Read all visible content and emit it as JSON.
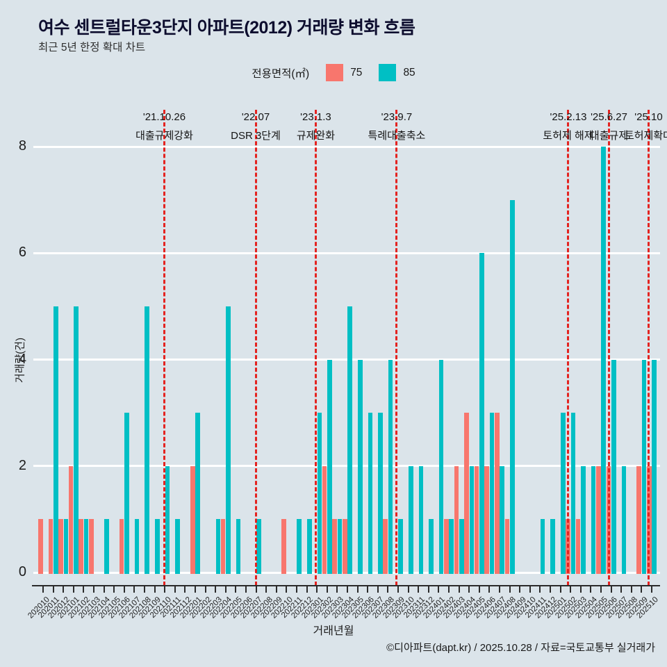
{
  "header": {
    "title": "여수 센트럴타운3단지 아파트(2012) 거래량 변화 흐름",
    "subtitle": "최근 5년 한정 확대 차트"
  },
  "legend": {
    "title": "전용면적(㎡)",
    "items": [
      {
        "label": "75",
        "color": "#F8766D"
      },
      {
        "label": "85",
        "color": "#00BFC4"
      }
    ]
  },
  "footer": {
    "credit": "©디아파트(dapt.kr) / 2025.10.28 / 자료=국토교통부 실거래가"
  },
  "colors": {
    "background": "#dbe4ea",
    "gridline": "#ffffff",
    "event_line": "#e42320",
    "series_75": "#F8766D",
    "series_85": "#00BFC4"
  },
  "chart_data": {
    "type": "bar",
    "title": "여수 센트럴타운3단지 아파트(2012) 거래량 변화 흐름",
    "xlabel": "거래년월",
    "ylabel": "거래량(건)",
    "ylim": [
      0,
      8
    ],
    "yticks": [
      0,
      2,
      4,
      6,
      8
    ],
    "grid": true,
    "legend_position": "top-center",
    "categories": [
      "202010",
      "202011",
      "202012",
      "202101",
      "202102",
      "202103",
      "202104",
      "202105",
      "202106",
      "202107",
      "202108",
      "202109",
      "202110",
      "202111",
      "202112",
      "202201",
      "202202",
      "202203",
      "202204",
      "202205",
      "202206",
      "202207",
      "202208",
      "202209",
      "202210",
      "202211",
      "202212",
      "202301",
      "202302",
      "202303",
      "202304",
      "202305",
      "202306",
      "202307",
      "202308",
      "202309",
      "202310",
      "202311",
      "202312",
      "202401",
      "202402",
      "202403",
      "202404",
      "202405",
      "202406",
      "202407",
      "202408",
      "202409",
      "202410",
      "202411",
      "202412",
      "202501",
      "202502",
      "202503",
      "202504",
      "202505",
      "202506",
      "202507",
      "202508",
      "202509",
      "202510"
    ],
    "series": [
      {
        "name": "75",
        "color": "#F8766D",
        "values": [
          1,
          1,
          1,
          2,
          1,
          1,
          0,
          0,
          1,
          0,
          0,
          0,
          0,
          0,
          0,
          2,
          0,
          0,
          1,
          0,
          0,
          0,
          0,
          0,
          1,
          0,
          0,
          0,
          2,
          1,
          1,
          0,
          0,
          0,
          1,
          0,
          0,
          0,
          0,
          0,
          1,
          2,
          3,
          2,
          2,
          3,
          1,
          0,
          0,
          0,
          0,
          0,
          1,
          1,
          0,
          2,
          2,
          0,
          0,
          2,
          2
        ]
      },
      {
        "name": "85",
        "color": "#00BFC4",
        "values": [
          0,
          5,
          1,
          5,
          1,
          0,
          1,
          0,
          3,
          1,
          5,
          1,
          2,
          1,
          0,
          3,
          0,
          1,
          5,
          1,
          0,
          1,
          0,
          0,
          0,
          1,
          1,
          3,
          4,
          1,
          5,
          4,
          3,
          3,
          4,
          1,
          2,
          2,
          1,
          4,
          1,
          1,
          2,
          6,
          3,
          2,
          7,
          0,
          0,
          1,
          1,
          3,
          3,
          2,
          2,
          8,
          4,
          2,
          0,
          4,
          4
        ]
      }
    ],
    "annotations": [
      {
        "date": "'21.10.26",
        "label": "대출규제강화",
        "month_pos": 11.95
      },
      {
        "date": "'22.07",
        "label": "DSR 3단계",
        "month_pos": 20.96
      },
      {
        "date": "'23.1.3",
        "label": "규제완화",
        "month_pos": 26.88
      },
      {
        "date": "'23.9.7",
        "label": "특례대출축소",
        "month_pos": 34.86
      },
      {
        "date": "'25.2.13",
        "label": "토허제 해제",
        "month_pos": 51.78
      },
      {
        "date": "'25.6.27",
        "label": "대출규제",
        "month_pos": 55.79
      },
      {
        "date": "'25.10",
        "label": "토허제확대",
        "month_pos": 59.69
      }
    ]
  }
}
